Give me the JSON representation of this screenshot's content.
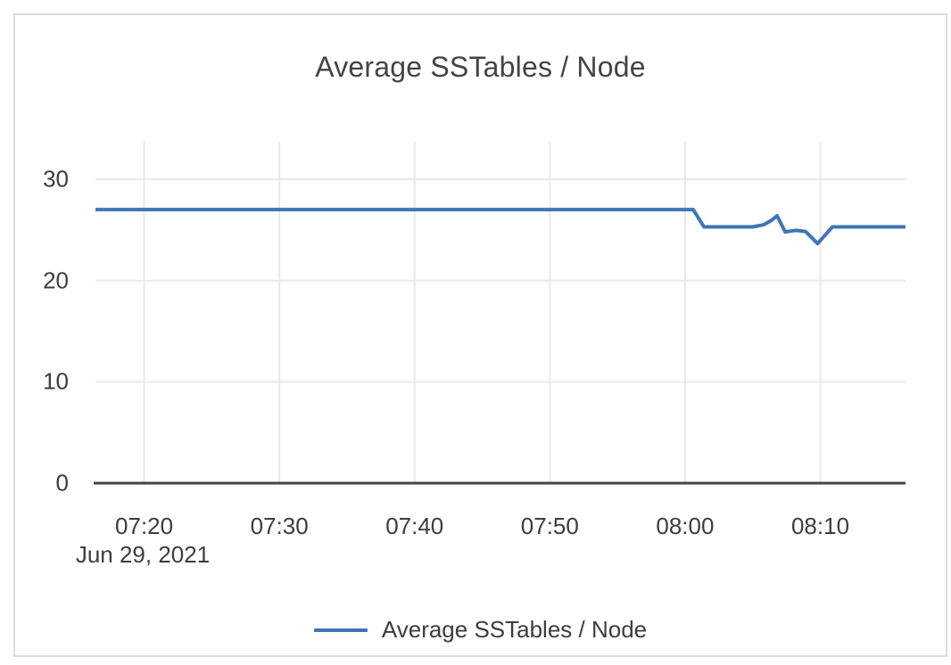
{
  "chart_data": {
    "type": "line",
    "title": "Average SSTables / Node",
    "x_axis": {
      "date_label": "Jun 29, 2021",
      "ticks": [
        {
          "label": "07:20",
          "minutes": 20
        },
        {
          "label": "07:30",
          "minutes": 30
        },
        {
          "label": "07:40",
          "minutes": 40
        },
        {
          "label": "07:50",
          "minutes": 50
        },
        {
          "label": "08:00",
          "minutes": 60
        },
        {
          "label": "08:10",
          "minutes": 70
        }
      ],
      "range_minutes": [
        16.4,
        76.3
      ],
      "units_note": "x values are minutes after 07:00 on Jun 29, 2021",
      "grid": true
    },
    "y_axis": {
      "ticks": [
        0,
        10,
        20,
        30
      ],
      "range": [
        0,
        33.7
      ],
      "grid": true
    },
    "series": [
      {
        "name": "Average SSTables / Node",
        "color": "#3e76b3",
        "points": [
          [
            16.4,
            27
          ],
          [
            60.6,
            27
          ],
          [
            61.4,
            25.3
          ],
          [
            65.0,
            25.3
          ],
          [
            65.8,
            25.5
          ],
          [
            66.4,
            25.95
          ],
          [
            66.8,
            26.4
          ],
          [
            67.4,
            24.8
          ],
          [
            68.2,
            24.95
          ],
          [
            68.9,
            24.85
          ],
          [
            69.8,
            23.65
          ],
          [
            70.9,
            25.3
          ],
          [
            76.3,
            25.3
          ]
        ]
      }
    ],
    "legend": {
      "position": "bottom-center",
      "entries": [
        {
          "label": "Average SSTables / Node",
          "color": "#3e76b3"
        }
      ]
    }
  },
  "colors": {
    "line": "#3e76b3",
    "grid": "#e9e9e9",
    "axis_line": "#444444",
    "text": "#3d3d3d",
    "title_text": "#444444",
    "card_border": "#dcdcdc",
    "background": "#ffffff"
  }
}
